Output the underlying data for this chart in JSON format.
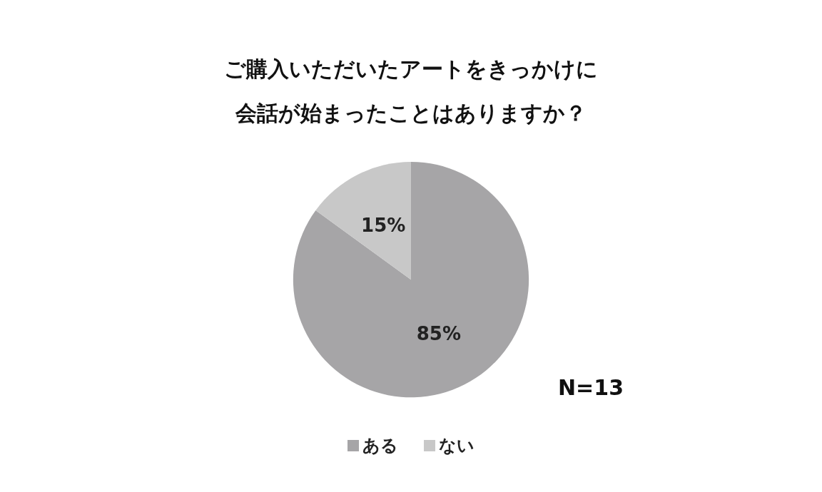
{
  "chart_data": {
    "type": "pie",
    "title": "ご購入いただいたアートをきっかけに会話が始まったことはありますか？",
    "categories": [
      "ある",
      "ない"
    ],
    "values": [
      85,
      15
    ],
    "colors": [
      "#a6a5a7",
      "#c8c8c8"
    ],
    "value_labels": [
      "85%",
      "15%"
    ],
    "legend": "bottom",
    "annotations": [
      "N=13"
    ]
  }
}
